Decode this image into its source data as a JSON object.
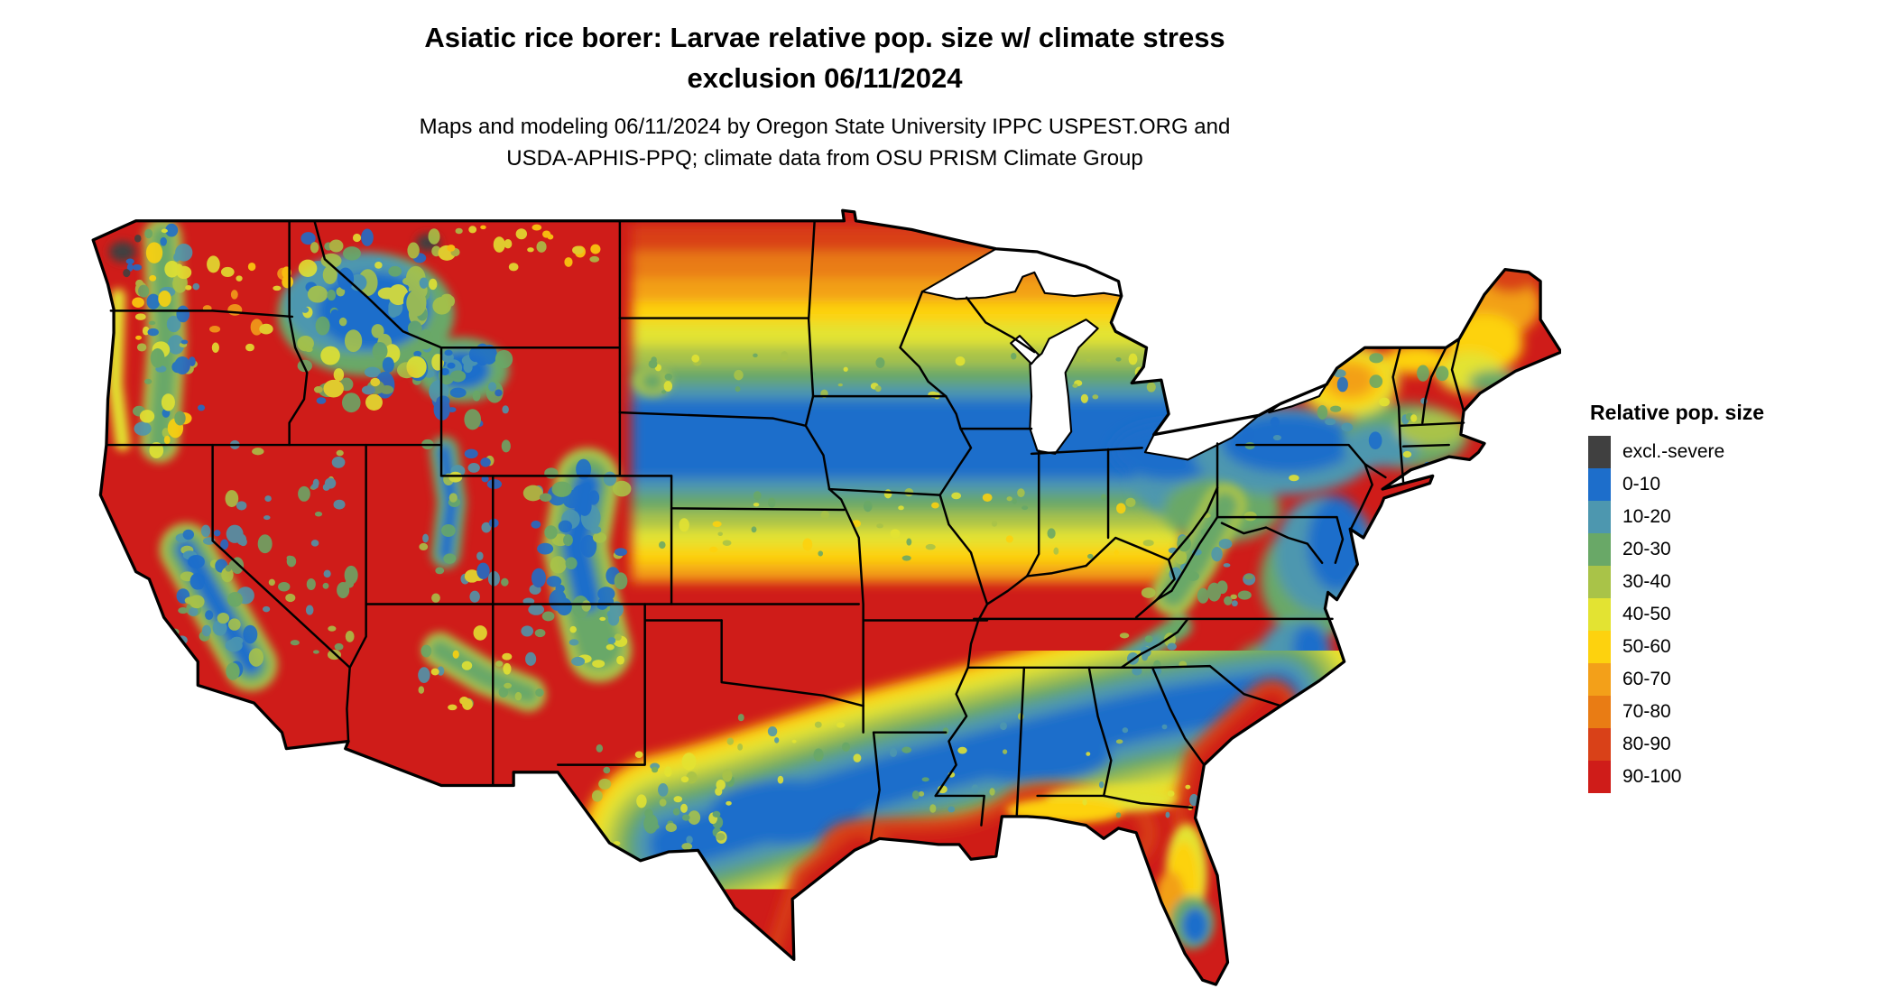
{
  "title": {
    "line1": "Asiatic rice borer: Larvae relative pop. size w/ climate stress",
    "line2": "exclusion 06/11/2024"
  },
  "subtitle": {
    "line1": "Maps and modeling 06/11/2024 by Oregon State University IPPC USPEST.ORG and",
    "line2": "USDA-APHIS-PPQ; climate data from OSU PRISM Climate Group"
  },
  "legend": {
    "title": "Relative pop. size",
    "entries": [
      {
        "label": "excl.-severe",
        "color": "#404040"
      },
      {
        "label": "0-10",
        "color": "#1d6ecb"
      },
      {
        "label": "10-20",
        "color": "#4d97af"
      },
      {
        "label": "20-30",
        "color": "#69a867"
      },
      {
        "label": "30-40",
        "color": "#a9c348"
      },
      {
        "label": "40-50",
        "color": "#e3e332"
      },
      {
        "label": "50-60",
        "color": "#fdd20e"
      },
      {
        "label": "60-70",
        "color": "#f3a019"
      },
      {
        "label": "70-80",
        "color": "#e97c14"
      },
      {
        "label": "80-90",
        "color": "#d94118"
      },
      {
        "label": "90-100",
        "color": "#cf1c19"
      }
    ]
  }
}
